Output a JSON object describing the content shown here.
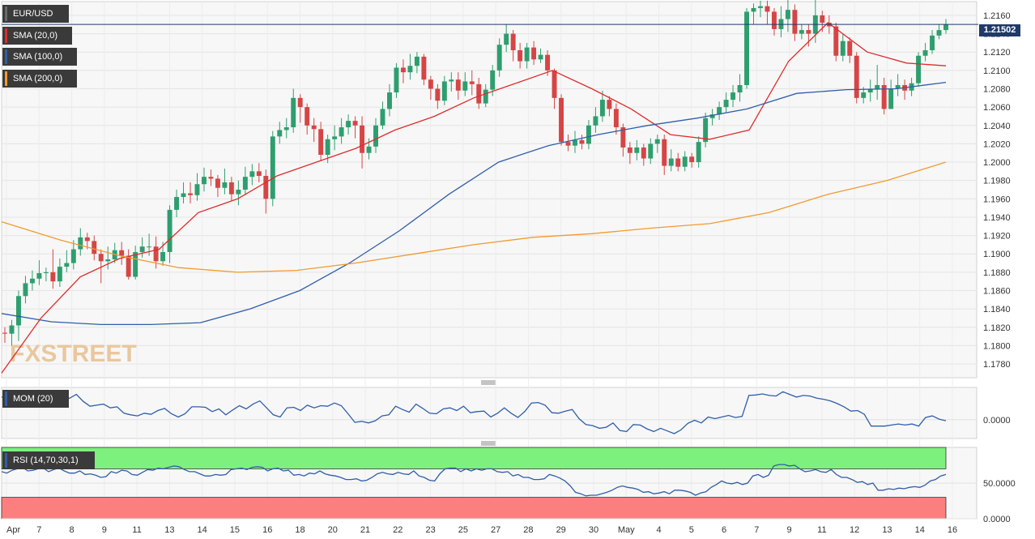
{
  "instrument": "EUR/USD",
  "price_label": "1.21502",
  "watermark": "FXSTREET",
  "indicators": {
    "sma20": "SMA (20,0)",
    "sma100": "SMA (100,0)",
    "sma200": "SMA (200,0)",
    "mom": "MOM (20)",
    "rsi": "RSI (14,70,30,1)"
  },
  "colors": {
    "sma20": "#e02b2b",
    "sma100": "#2f5ea8",
    "sma200": "#f29a2e",
    "bull": "#2e9e6e",
    "bear": "#d64545",
    "rsi_over": "#7ef07e",
    "rsi_under": "#fb7f7f"
  },
  "chart_data": {
    "type": "line",
    "title": "EUR/USD",
    "ylim": [
      1.1765,
      1.2175
    ],
    "y_ticks": [
      "1.2160",
      "1.2140",
      "1.2120",
      "1.2100",
      "1.2080",
      "1.2060",
      "1.2040",
      "1.2020",
      "1.2000",
      "1.1980",
      "1.1960",
      "1.1940",
      "1.1920",
      "1.1900",
      "1.1880",
      "1.1860",
      "1.1840",
      "1.1820",
      "1.1800",
      "1.1780"
    ],
    "x_ticks": [
      "Apr",
      "7",
      "8",
      "9",
      "11",
      "13",
      "14",
      "15",
      "16",
      "18",
      "20",
      "21",
      "22",
      "23",
      "25",
      "27",
      "28",
      "29",
      "30",
      "May",
      "4",
      "5",
      "6",
      "7",
      "9",
      "11",
      "12",
      "13",
      "14",
      "16"
    ],
    "current_price": 1.21502,
    "series": [
      {
        "name": "SMA (20,0)",
        "values": [
          1.177,
          1.183,
          1.1875,
          1.1895,
          1.1905,
          1.1945,
          1.196,
          1.1985,
          1.2,
          1.2015,
          1.2035,
          1.205,
          1.207,
          1.2085,
          1.21,
          1.208,
          1.2058,
          1.203,
          1.2025,
          1.2035,
          1.211,
          1.2152,
          1.212,
          1.2108,
          1.2105
        ]
      },
      {
        "name": "SMA (100,0)",
        "values": [
          1.1835,
          1.1826,
          1.1823,
          1.1823,
          1.1825,
          1.184,
          1.186,
          1.189,
          1.1925,
          1.1965,
          1.2,
          1.2018,
          1.203,
          1.204,
          1.2048,
          1.2058,
          1.2075,
          1.2079,
          1.208,
          1.2087
        ]
      },
      {
        "name": "SMA (200,0)",
        "values": [
          1.1935,
          1.1915,
          1.1898,
          1.1885,
          1.188,
          1.1882,
          1.189,
          1.19,
          1.191,
          1.1918,
          1.1922,
          1.1928,
          1.1933,
          1.1945,
          1.1965,
          1.198,
          1.2
        ]
      }
    ],
    "candles": [
      [
        1.1814,
        1.1813,
        1.182,
        1.1803
      ],
      [
        1.1813,
        1.1822,
        1.1828,
        1.18
      ],
      [
        1.1822,
        1.1854,
        1.186,
        1.1805
      ],
      [
        1.1854,
        1.1868,
        1.1876,
        1.1846
      ],
      [
        1.1868,
        1.1873,
        1.1882,
        1.186
      ],
      [
        1.1873,
        1.1879,
        1.1893,
        1.1866
      ],
      [
        1.1879,
        1.188,
        1.1885,
        1.187
      ],
      [
        1.188,
        1.187,
        1.1905,
        1.1862
      ],
      [
        1.187,
        1.1886,
        1.1895,
        1.1864
      ],
      [
        1.1886,
        1.189,
        1.1904,
        1.188
      ],
      [
        1.189,
        1.1905,
        1.1915,
        1.1883
      ],
      [
        1.1905,
        1.1918,
        1.1928,
        1.1898
      ],
      [
        1.1918,
        1.1914,
        1.1923,
        1.1905
      ],
      [
        1.1914,
        1.19,
        1.192,
        1.1893
      ],
      [
        1.19,
        1.1892,
        1.1905,
        1.1868
      ],
      [
        1.1892,
        1.1894,
        1.1908,
        1.1883
      ],
      [
        1.1894,
        1.1904,
        1.1912,
        1.189
      ],
      [
        1.1904,
        1.1898,
        1.1913,
        1.1888
      ],
      [
        1.1898,
        1.1875,
        1.1905,
        1.1872
      ],
      [
        1.1875,
        1.1902,
        1.1909,
        1.1872
      ],
      [
        1.1902,
        1.1908,
        1.1918,
        1.1896
      ],
      [
        1.1908,
        1.1908,
        1.1922,
        1.1898
      ],
      [
        1.1908,
        1.1892,
        1.1919,
        1.1884
      ],
      [
        1.1892,
        1.1902,
        1.1913,
        1.1887
      ],
      [
        1.1902,
        1.1948,
        1.1953,
        1.189
      ],
      [
        1.1948,
        1.1962,
        1.197,
        1.194
      ],
      [
        1.1962,
        1.1966,
        1.1978,
        1.1955
      ],
      [
        1.1966,
        1.1964,
        1.1978,
        1.1955
      ],
      [
        1.1964,
        1.1976,
        1.1988,
        1.1958
      ],
      [
        1.1976,
        1.1984,
        1.1994,
        1.1968
      ],
      [
        1.1984,
        1.1982,
        1.1992,
        1.1974
      ],
      [
        1.1982,
        1.1972,
        1.1986,
        1.1962
      ],
      [
        1.1972,
        1.1978,
        1.1993,
        1.1965
      ],
      [
        1.1978,
        1.1965,
        1.1984,
        1.1958
      ],
      [
        1.1965,
        1.197,
        1.198,
        1.1953
      ],
      [
        1.197,
        1.1984,
        1.1995,
        1.1964
      ],
      [
        1.1984,
        1.199,
        1.1998,
        1.1975
      ],
      [
        1.199,
        1.1985,
        1.1999,
        1.1978
      ],
      [
        1.1985,
        1.196,
        1.1992,
        1.1944
      ],
      [
        1.196,
        1.2028,
        1.2034,
        1.1952
      ],
      [
        1.2028,
        1.2035,
        1.2044,
        1.202
      ],
      [
        1.2035,
        1.2038,
        1.2048,
        1.2026
      ],
      [
        1.2038,
        1.207,
        1.208,
        1.2032
      ],
      [
        1.207,
        1.206,
        1.2074,
        1.2043
      ],
      [
        1.206,
        1.204,
        1.2064,
        1.203
      ],
      [
        1.204,
        1.2036,
        1.2048,
        1.2022
      ],
      [
        1.2036,
        1.2008,
        1.2044,
        1.2001
      ],
      [
        1.2008,
        1.2025,
        1.203,
        1.1999
      ],
      [
        1.2025,
        1.2028,
        1.204,
        1.2013
      ],
      [
        1.2028,
        1.2038,
        1.2048,
        1.202
      ],
      [
        1.2038,
        1.2045,
        1.2052,
        1.203
      ],
      [
        1.2045,
        1.204,
        1.205,
        1.2026
      ],
      [
        1.204,
        1.201,
        1.205,
        1.1993
      ],
      [
        1.201,
        1.2017,
        1.2026,
        1.2003
      ],
      [
        1.2017,
        1.204,
        1.2048,
        1.201
      ],
      [
        1.204,
        1.2058,
        1.2066,
        1.2036
      ],
      [
        1.2058,
        1.2076,
        1.2085,
        1.205
      ],
      [
        1.2076,
        1.2103,
        1.2108,
        1.207
      ],
      [
        1.2103,
        1.2098,
        1.2112,
        1.2086
      ],
      [
        1.2098,
        1.2105,
        1.2118,
        1.209
      ],
      [
        1.2105,
        1.2115,
        1.212,
        1.2097
      ],
      [
        1.2115,
        1.209,
        1.2118,
        1.2084
      ],
      [
        1.209,
        1.208,
        1.2094,
        1.2068
      ],
      [
        1.208,
        1.2067,
        1.2085,
        1.2058
      ],
      [
        1.2067,
        1.2088,
        1.2094,
        1.2062
      ],
      [
        1.2088,
        1.209,
        1.2098,
        1.2077
      ],
      [
        1.209,
        1.2078,
        1.2098,
        1.2068
      ],
      [
        1.2078,
        1.2088,
        1.2098,
        1.2072
      ],
      [
        1.2088,
        1.2085,
        1.21,
        1.2073
      ],
      [
        1.2085,
        1.2064,
        1.2092,
        1.2058
      ],
      [
        1.2064,
        1.2079,
        1.2085,
        1.206
      ],
      [
        1.2079,
        1.21,
        1.2106,
        1.2072
      ],
      [
        1.21,
        1.2128,
        1.2135,
        1.2093
      ],
      [
        1.2128,
        1.214,
        1.215,
        1.212
      ],
      [
        1.214,
        1.2122,
        1.2144,
        1.211
      ],
      [
        1.2122,
        1.211,
        1.213,
        1.2102
      ],
      [
        1.211,
        1.2125,
        1.213,
        1.2102
      ],
      [
        1.2125,
        1.2112,
        1.2132,
        1.2106
      ],
      [
        1.2112,
        1.2117,
        1.2124,
        1.2108
      ],
      [
        1.2117,
        1.21,
        1.2122,
        1.2094
      ],
      [
        1.21,
        1.207,
        1.2102,
        1.2058
      ],
      [
        1.207,
        1.2022,
        1.2074,
        1.2018
      ],
      [
        1.2022,
        1.2018,
        1.203,
        1.2012
      ],
      [
        1.2018,
        1.2024,
        1.2034,
        1.201
      ],
      [
        1.2024,
        1.202,
        1.203,
        1.2014
      ],
      [
        1.202,
        1.204,
        1.2046,
        1.2014
      ],
      [
        1.204,
        1.205,
        1.206,
        1.2032
      ],
      [
        1.205,
        1.2068,
        1.2078,
        1.2044
      ],
      [
        1.2068,
        1.2058,
        1.2072,
        1.205
      ],
      [
        1.2058,
        1.2038,
        1.2064,
        1.203
      ],
      [
        1.2038,
        1.2016,
        1.2042,
        1.2006
      ],
      [
        1.2016,
        1.201,
        1.2022,
        1.1998
      ],
      [
        1.201,
        1.2016,
        1.2024,
        1.2002
      ],
      [
        1.2016,
        1.2004,
        1.202,
        1.1996
      ],
      [
        1.2004,
        1.202,
        1.2026,
        1.1998
      ],
      [
        1.202,
        1.2025,
        1.203,
        1.201
      ],
      [
        1.2025,
        1.1996,
        1.203,
        1.1986
      ],
      [
        1.1996,
        1.2004,
        1.2014,
        1.199
      ],
      [
        1.2004,
        1.1995,
        1.201,
        1.199
      ],
      [
        1.1995,
        1.2006,
        1.2012,
        1.199
      ],
      [
        1.2006,
        1.2,
        1.201,
        1.1994
      ],
      [
        1.2,
        1.2022,
        1.2028,
        1.1994
      ],
      [
        1.2022,
        1.2048,
        1.2054,
        1.2016
      ],
      [
        1.2048,
        1.2052,
        1.2058,
        1.204
      ],
      [
        1.2052,
        1.206,
        1.2066,
        1.2046
      ],
      [
        1.206,
        1.2068,
        1.2076,
        1.2054
      ],
      [
        1.2068,
        1.2076,
        1.2084,
        1.206
      ],
      [
        1.2076,
        1.2084,
        1.2096,
        1.2066
      ],
      [
        1.2084,
        1.2164,
        1.2168,
        1.208
      ],
      [
        1.2164,
        1.2168,
        1.2173,
        1.215
      ],
      [
        1.2168,
        1.217,
        1.2176,
        1.2158
      ],
      [
        1.217,
        1.2164,
        1.2176,
        1.215
      ],
      [
        1.2164,
        1.2145,
        1.2168,
        1.2138
      ],
      [
        1.2145,
        1.2156,
        1.217,
        1.2136
      ],
      [
        1.2156,
        1.2166,
        1.2178,
        1.2142
      ],
      [
        1.2166,
        1.214,
        1.2172,
        1.2132
      ],
      [
        1.214,
        1.2144,
        1.215,
        1.2134
      ],
      [
        1.2144,
        1.214,
        1.215,
        1.2126
      ],
      [
        1.214,
        1.216,
        1.2182,
        1.213
      ],
      [
        1.216,
        1.2152,
        1.2165,
        1.2142
      ],
      [
        1.2152,
        1.2148,
        1.216,
        1.214
      ],
      [
        1.2148,
        1.2116,
        1.2152,
        1.211
      ],
      [
        1.2116,
        1.2132,
        1.214,
        1.211
      ],
      [
        1.2132,
        1.2116,
        1.2136,
        1.2108
      ],
      [
        1.2116,
        1.207,
        1.212,
        1.2064
      ],
      [
        1.207,
        1.2076,
        1.2082,
        1.2064
      ],
      [
        1.2076,
        1.208,
        1.209,
        1.2066
      ],
      [
        1.208,
        1.2084,
        1.2106,
        1.2068
      ],
      [
        1.2084,
        1.2058,
        1.2092,
        1.2052
      ],
      [
        1.2058,
        1.208,
        1.209,
        1.206
      ],
      [
        1.208,
        1.2084,
        1.2096,
        1.2072
      ],
      [
        1.2084,
        1.2078,
        1.209,
        1.2068
      ],
      [
        1.2078,
        1.2086,
        1.2092,
        1.2072
      ],
      [
        1.2086,
        1.2116,
        1.212,
        1.2082
      ],
      [
        1.2116,
        1.2122,
        1.213,
        1.211
      ],
      [
        1.2122,
        1.2138,
        1.2144,
        1.2118
      ],
      [
        1.2138,
        1.2144,
        1.215,
        1.2134
      ],
      [
        1.2144,
        1.215,
        1.2156,
        1.214
      ]
    ],
    "mom": {
      "y_ticks": [
        "0.0000"
      ],
      "values": [
        0.42,
        0.4,
        0.36,
        0.38,
        0.34,
        0.32,
        0.35,
        0.36,
        0.42,
        0.36,
        0.4,
        0.47,
        0.34,
        0.25,
        0.27,
        0.29,
        0.22,
        0.24,
        0.12,
        0.09,
        0.07,
        0.12,
        0.1,
        0.17,
        0.21,
        0.11,
        0.05,
        0.11,
        0.24,
        0.24,
        0.23,
        0.15,
        0.2,
        0.09,
        0.18,
        0.26,
        0.2,
        0.29,
        0.35,
        0.22,
        0.09,
        0.05,
        0.22,
        0.23,
        0.17,
        0.27,
        0.22,
        0.26,
        0.25,
        0.31,
        0.26,
        0.11,
        -0.05,
        -0.03,
        -0.06,
        -0.02,
        0.07,
        0.09,
        0.25,
        0.19,
        0.14,
        0.29,
        0.21,
        0.12,
        0.11,
        0.2,
        0.22,
        0.17,
        0.25,
        0.13,
        0.15,
        0.16,
        0.05,
        0.12,
        0.22,
        0.12,
        0.04,
        0.15,
        0.31,
        0.32,
        0.27,
        0.13,
        0.12,
        0.16,
        0.19,
        0.02,
        -0.09,
        -0.11,
        -0.16,
        -0.14,
        -0.06,
        -0.2,
        -0.22,
        -0.09,
        -0.1,
        -0.17,
        -0.22,
        -0.16,
        -0.21,
        -0.26,
        -0.19,
        -0.07,
        -0.01,
        -0.06,
        0.05,
        0.02,
        0.05,
        0.08,
        0.04,
        0.06,
        0.45,
        0.46,
        0.48,
        0.45,
        0.44,
        0.52,
        0.47,
        0.42,
        0.45,
        0.44,
        0.4,
        0.38,
        0.35,
        0.3,
        0.24,
        0.16,
        0.17,
        0.1,
        -0.12,
        -0.12,
        -0.12,
        -0.1,
        -0.08,
        -0.1,
        -0.08,
        -0.12,
        0.04,
        0.07,
        0.01,
        -0.02
      ],
      "ylim": [
        -0.35,
        0.6
      ]
    },
    "rsi": {
      "y_ticks": [
        "50.0000",
        "0.0000"
      ],
      "overbought": 70,
      "oversold": 30,
      "values": [
        66,
        64,
        68,
        70,
        72,
        67,
        68,
        70,
        71,
        66,
        69,
        71,
        67,
        64,
        64,
        67,
        62,
        63,
        61,
        58,
        59,
        66,
        64,
        68,
        67,
        62,
        61,
        65,
        69,
        68,
        71,
        70,
        72,
        74,
        73,
        69,
        66,
        66,
        63,
        60,
        60,
        62,
        61,
        62,
        69,
        70,
        71,
        69,
        72,
        73,
        72,
        67,
        70,
        71,
        67,
        68,
        61,
        62,
        60,
        64,
        63,
        67,
        63,
        61,
        60,
        58,
        55,
        55,
        56,
        53,
        54,
        58,
        63,
        65,
        63,
        62,
        65,
        63,
        62,
        67,
        60,
        58,
        54,
        53,
        63,
        70,
        71,
        71,
        66,
        70,
        67,
        70,
        68,
        70,
        70,
        66,
        65,
        66,
        60,
        62,
        58,
        58,
        55,
        55,
        56,
        62,
        60,
        57,
        53,
        46,
        37,
        35,
        32,
        33,
        33,
        35,
        37,
        40,
        44,
        46,
        44,
        43,
        41,
        37,
        38,
        35,
        36,
        38,
        35,
        40,
        40,
        39,
        37,
        33,
        36,
        38,
        44,
        48,
        53,
        50,
        49,
        51,
        48,
        50,
        60,
        62,
        58,
        61,
        74,
        76,
        76,
        74,
        75,
        70,
        66,
        67,
        69,
        66,
        65,
        69,
        62,
        58,
        58,
        55,
        51,
        52,
        48,
        50,
        40,
        40,
        42,
        41,
        43,
        42,
        44,
        45,
        44,
        47,
        53,
        55,
        60,
        62
      ]
    }
  }
}
